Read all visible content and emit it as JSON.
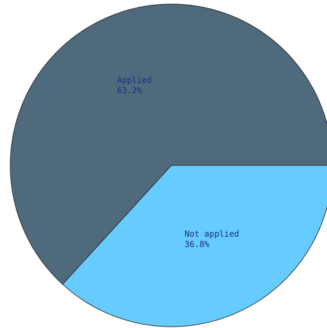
{
  "chart_data": {
    "type": "pie",
    "slices": [
      {
        "label": "Applied",
        "value": 63.2,
        "value_label": "63.2%",
        "color": "#4f6a7c"
      },
      {
        "label": "Not applied",
        "value": 36.8,
        "value_label": "36.8%",
        "color": "#66ccff"
      }
    ],
    "start_direction": "right",
    "label_color": "#1a2a8c",
    "outline_color": "#2b2b2b"
  }
}
